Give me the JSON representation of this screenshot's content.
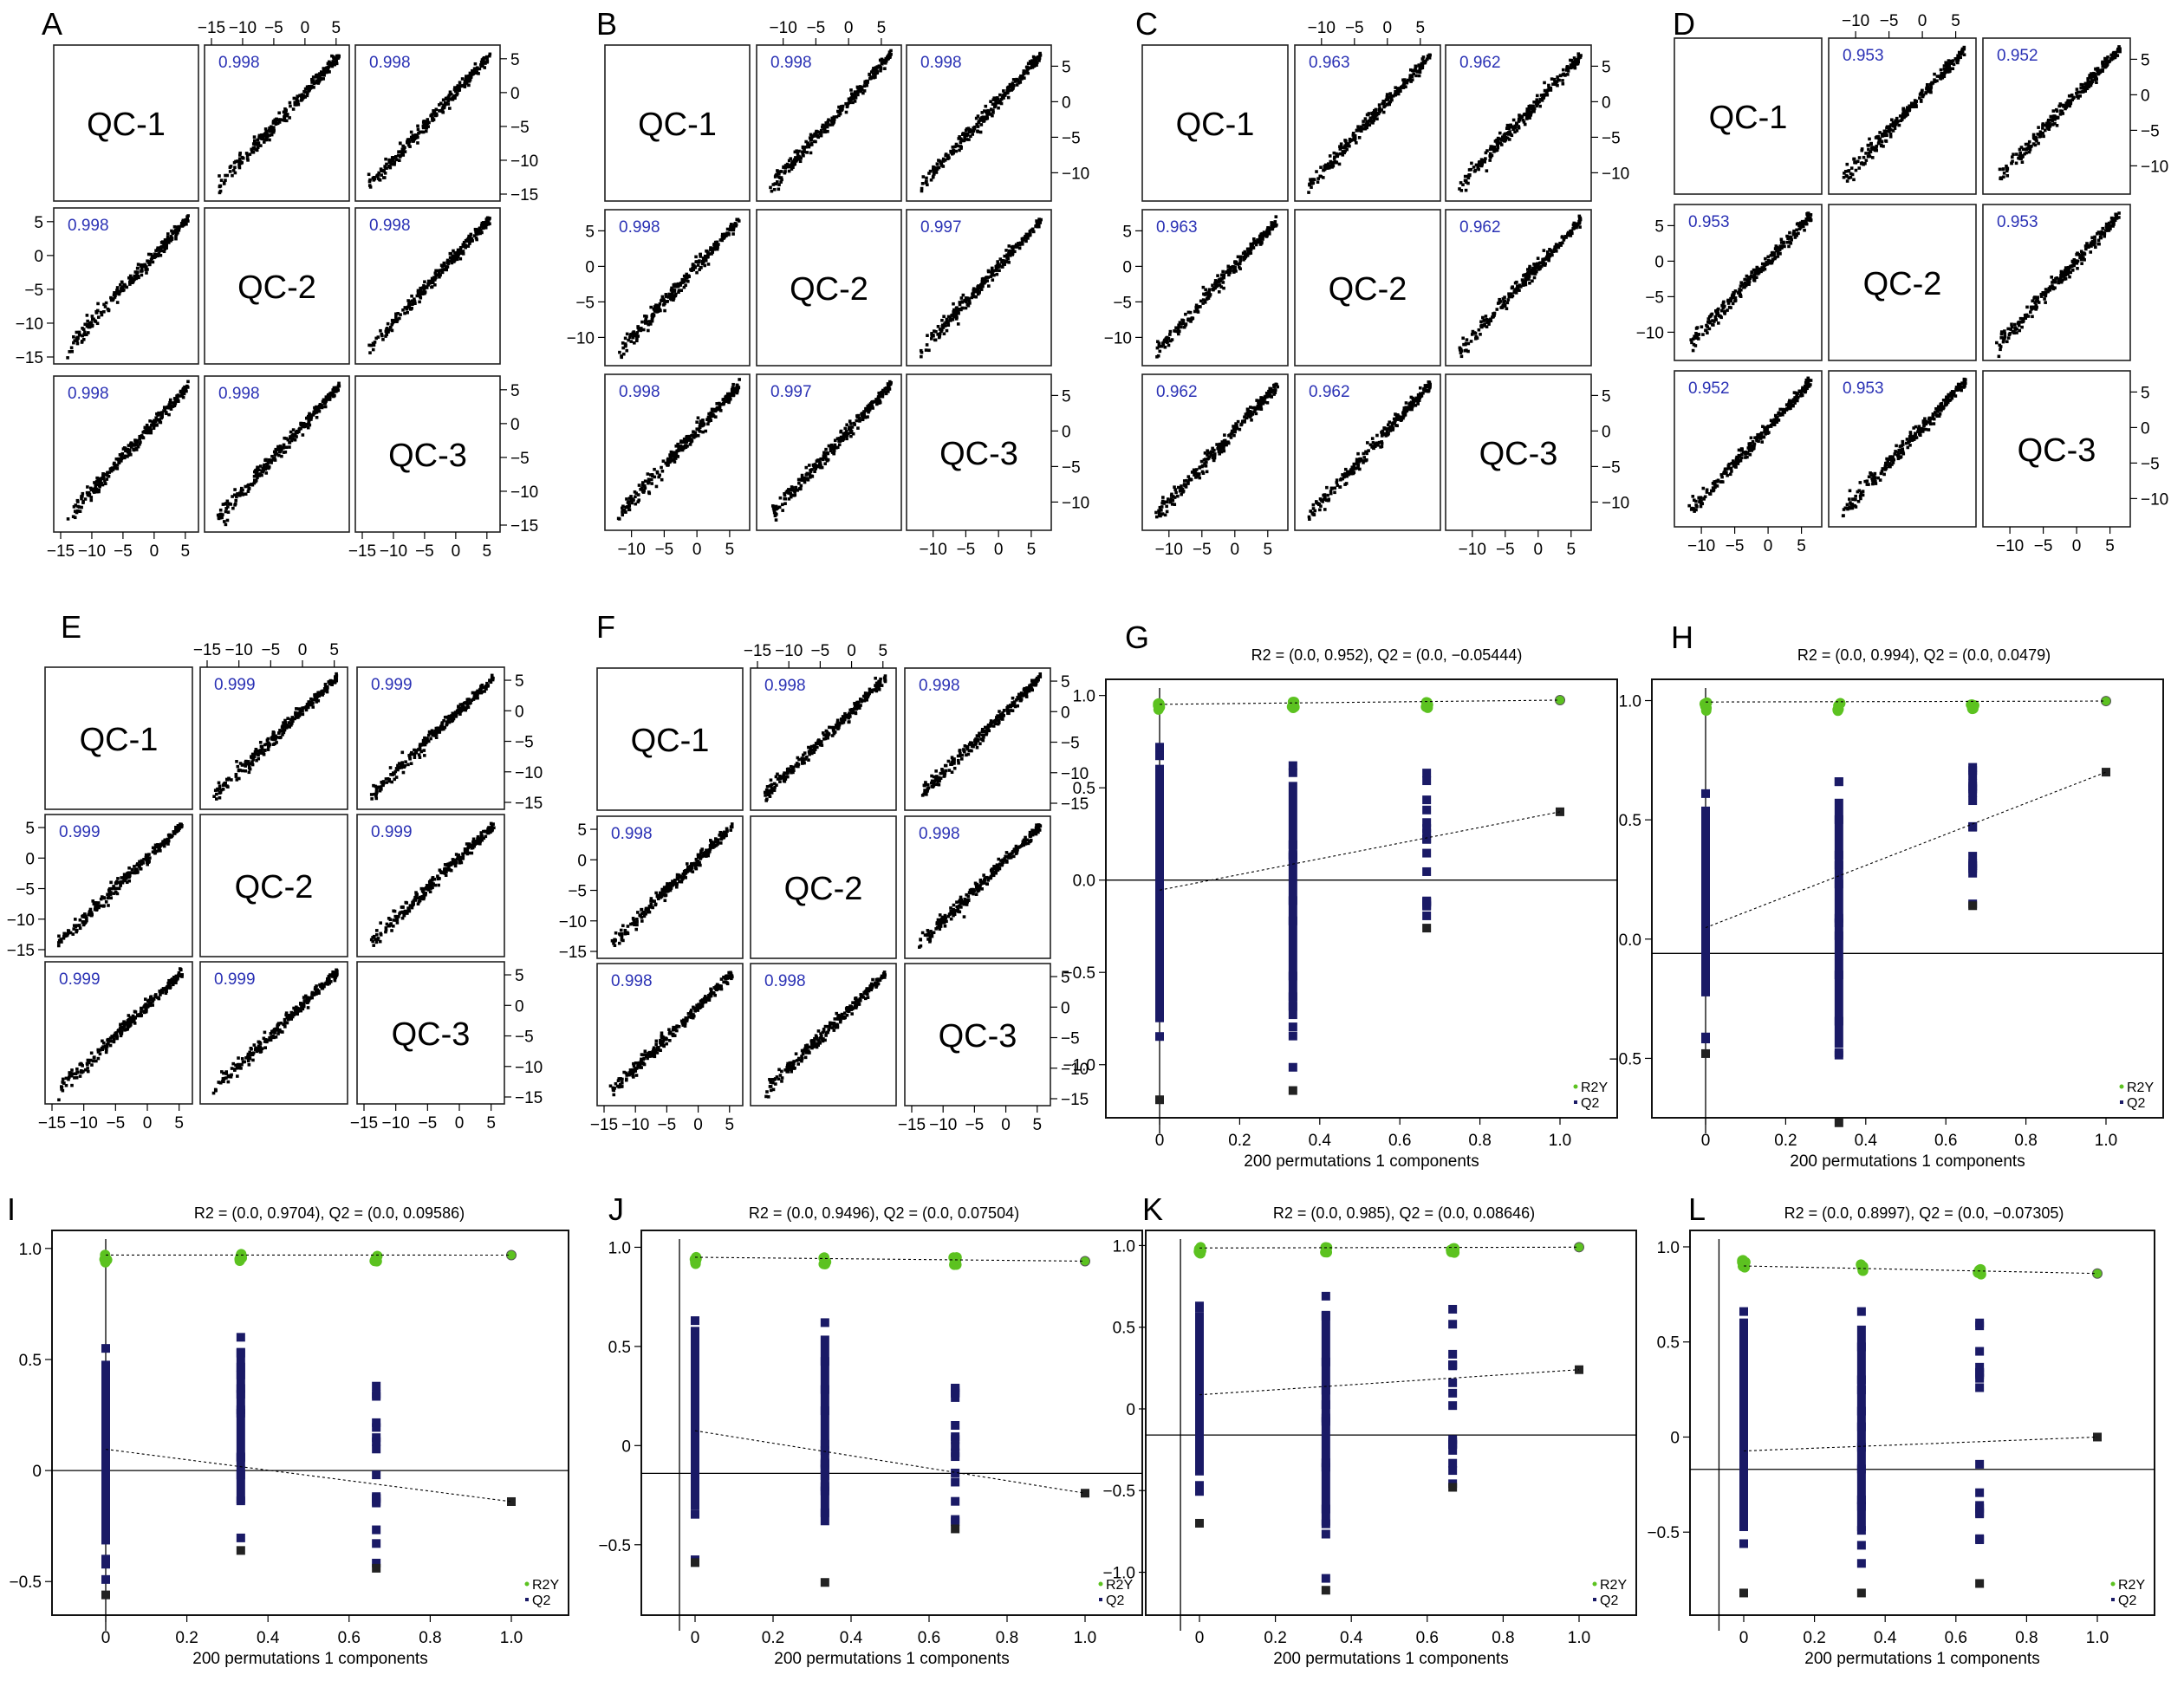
{
  "chart_data": [
    {
      "panel": "A",
      "type": "scatter-matrix",
      "diag_labels": [
        "QC-1",
        "QC-2",
        "QC-3"
      ],
      "correlations": [
        [
          "",
          "0.998",
          "0.998"
        ],
        [
          "0.998",
          "",
          "0.998"
        ],
        [
          "0.998",
          "0.998",
          ""
        ]
      ],
      "ticks": [
        "−15",
        "−10",
        "−5",
        "0",
        "5"
      ],
      "axis_range": [
        -15,
        6
      ]
    },
    {
      "panel": "B",
      "type": "scatter-matrix",
      "diag_labels": [
        "QC-1",
        "QC-2",
        "QC-3"
      ],
      "correlations": [
        [
          "",
          "0.998",
          "0.998"
        ],
        [
          "0.998",
          "",
          "0.997"
        ],
        [
          "0.998",
          "0.997",
          ""
        ]
      ],
      "ticks": [
        "−10",
        "−5",
        "0",
        "5"
      ],
      "axis_range": [
        -13,
        7
      ]
    },
    {
      "panel": "C",
      "type": "scatter-matrix",
      "diag_labels": [
        "QC-1",
        "QC-2",
        "QC-3"
      ],
      "correlations": [
        [
          "",
          "0.963",
          "0.962"
        ],
        [
          "0.963",
          "",
          "0.962"
        ],
        [
          "0.962",
          "0.962",
          ""
        ]
      ],
      "ticks": [
        "−10",
        "−5",
        "0",
        "5"
      ],
      "axis_range": [
        -13,
        7
      ]
    },
    {
      "panel": "D",
      "type": "scatter-matrix",
      "diag_labels": [
        "QC-1",
        "QC-2",
        "QC-3"
      ],
      "correlations": [
        [
          "",
          "0.953",
          "0.952"
        ],
        [
          "0.953",
          "",
          "0.953"
        ],
        [
          "0.952",
          "0.953",
          ""
        ]
      ],
      "ticks": [
        "−10",
        "−5",
        "0",
        "5"
      ],
      "axis_range": [
        -13,
        7
      ]
    },
    {
      "panel": "E",
      "type": "scatter-matrix",
      "diag_labels": [
        "QC-1",
        "QC-2",
        "QC-3"
      ],
      "correlations": [
        [
          "",
          "0.999",
          "0.999"
        ],
        [
          "0.999",
          "",
          "0.999"
        ],
        [
          "0.999",
          "0.999",
          ""
        ]
      ],
      "ticks": [
        "−15",
        "−10",
        "−5",
        "0",
        "5"
      ],
      "axis_range": [
        -15,
        6
      ]
    },
    {
      "panel": "F",
      "type": "scatter-matrix",
      "diag_labels": [
        "QC-1",
        "QC-2",
        "QC-3"
      ],
      "correlations": [
        [
          "",
          "0.998",
          "0.998"
        ],
        [
          "0.998",
          "",
          "0.998"
        ],
        [
          "0.998",
          "0.998",
          ""
        ]
      ],
      "ticks": [
        "−15",
        "−10",
        "−5",
        "0",
        "5"
      ],
      "axis_range": [
        -15,
        6
      ]
    },
    {
      "panel": "G",
      "type": "scatter",
      "title": "R2 = (0.0, 0.952), Q2 = (0.0, −0.05444)",
      "xlabel": "200 permutations 1 components",
      "xlim": [
        0,
        1
      ],
      "ylim": [
        -1.25,
        1.05
      ],
      "xticks": [
        0,
        0.2,
        0.4,
        0.6,
        0.8,
        1.0
      ],
      "xtick_labels": [
        "0",
        "0.2",
        "0.4",
        "0.6",
        "0.8",
        "1.0"
      ],
      "yticks": [
        -1.0,
        -0.5,
        0.0,
        0.5,
        1.0
      ],
      "ytick_labels": [
        "−1.0",
        "−0.5",
        "0.0",
        "0.5",
        "1.0"
      ],
      "hline": 0,
      "vline": 0,
      "legend": [
        "R2Y",
        "Q2"
      ],
      "r2y": {
        "x": [
          0,
          0.333,
          0.667,
          1.0
        ],
        "y": [
          0.96,
          0.965,
          0.97,
          0.975
        ],
        "line": [
          0.952,
          0.975
        ]
      },
      "q2": {
        "x": [
          0,
          0.333,
          0.667,
          1.0
        ],
        "top": [
          0.72,
          0.62,
          0.58,
          0.37
        ],
        "bottom": [
          -1.19,
          -1.14,
          -0.26,
          0.37
        ],
        "line": [
          -0.05444,
          0.37
        ]
      }
    },
    {
      "panel": "H",
      "type": "scatter",
      "title": "R2 = (0.0, 0.994), Q2 = (0.0, 0.0479)",
      "xlabel": "200 permutations 1 components",
      "xlim": [
        0,
        1
      ],
      "ylim": [
        -0.72,
        1.06
      ],
      "xticks": [
        0,
        0.2,
        0.4,
        0.6,
        0.8,
        1.0
      ],
      "xtick_labels": [
        "0",
        "0.2",
        "0.4",
        "0.6",
        "0.8",
        "1.0"
      ],
      "yticks": [
        -0.5,
        0.0,
        0.5,
        1.0
      ],
      "ytick_labels": [
        "−0.5",
        "0.0",
        "0.5",
        "1.0"
      ],
      "hline": -0.06,
      "vline": 0,
      "legend": [
        "R2Y",
        "Q2"
      ],
      "r2y": {
        "x": [
          0,
          0.333,
          0.667,
          1.0
        ],
        "y": [
          0.995,
          0.996,
          0.997,
          0.998
        ],
        "line": [
          0.994,
          0.998
        ]
      },
      "q2": {
        "x": [
          0,
          0.333,
          0.667,
          1.0
        ],
        "top": [
          0.61,
          0.66,
          0.72,
          0.7
        ],
        "bottom": [
          -0.48,
          -0.77,
          0.14,
          0.7
        ],
        "line": [
          0.0479,
          0.7
        ]
      }
    },
    {
      "panel": "I",
      "type": "scatter",
      "title": "R2 = (0.0, 0.9704), Q2 = (0.0, 0.09586)",
      "xlabel": "200 permutations 1 components",
      "xlim": [
        0,
        1
      ],
      "ylim": [
        -0.62,
        1.05
      ],
      "xticks": [
        0,
        0.2,
        0.4,
        0.6,
        0.8,
        1.0
      ],
      "xtick_labels": [
        "0",
        "0.2",
        "0.4",
        "0.6",
        "0.8",
        "1.0"
      ],
      "yticks": [
        -0.5,
        0,
        0.5,
        1.0
      ],
      "ytick_labels": [
        "−0.5",
        "0",
        "0.5",
        "1.0"
      ],
      "hline": 0,
      "vline": 0,
      "legend": [
        "R2Y",
        "Q2"
      ],
      "r2y": {
        "x": [
          0,
          0.333,
          0.667,
          1.0
        ],
        "y": [
          0.975,
          0.975,
          0.975,
          0.97
        ],
        "line": [
          0.9704,
          0.97
        ]
      },
      "q2": {
        "x": [
          0,
          0.333,
          0.667,
          1.0
        ],
        "top": [
          0.55,
          0.6,
          0.38,
          -0.14
        ],
        "bottom": [
          -0.56,
          -0.36,
          -0.44,
          -0.14
        ],
        "line": [
          0.09586,
          -0.14
        ]
      }
    },
    {
      "panel": "J",
      "type": "scatter",
      "title": "R2 = (0.0, 0.9496), Q2 = (0.0, 0.07504)",
      "xlabel": "200 permutations 1 components",
      "xlim": [
        0,
        1
      ],
      "ylim": [
        -0.82,
        1.05
      ],
      "xticks": [
        0,
        0.2,
        0.4,
        0.6,
        0.8,
        1.0
      ],
      "xtick_labels": [
        "0",
        "0.2",
        "0.4",
        "0.6",
        "0.8",
        "1.0"
      ],
      "yticks": [
        -0.5,
        0,
        0.5,
        1.0
      ],
      "ytick_labels": [
        "−0.5",
        "0",
        "0.5",
        "1.0"
      ],
      "hline": -0.14,
      "vline": -0.04,
      "legend": [
        "R2Y",
        "Q2"
      ],
      "r2y": {
        "x": [
          0,
          0.333,
          0.667,
          1.0
        ],
        "y": [
          0.955,
          0.955,
          0.95,
          0.93
        ],
        "line": [
          0.9496,
          0.93
        ]
      },
      "q2": {
        "x": [
          0,
          0.333,
          0.667,
          1.0
        ],
        "top": [
          0.63,
          0.62,
          0.29,
          -0.24
        ],
        "bottom": [
          -0.59,
          -0.69,
          -0.42,
          -0.24
        ],
        "line": [
          0.07504,
          -0.24
        ]
      }
    },
    {
      "panel": "K",
      "type": "scatter",
      "title": "R2 = (0.0, 0.985), Q2 = (0.0, 0.08646)",
      "xlabel": "200 permutations 1 components",
      "xlim": [
        0,
        1
      ],
      "ylim": [
        -1.22,
        1.05
      ],
      "xticks": [
        0,
        0.2,
        0.4,
        0.6,
        0.8,
        1.0
      ],
      "xtick_labels": [
        "0",
        "0.2",
        "0.4",
        "0.6",
        "0.8",
        "1.0"
      ],
      "yticks": [
        -1.0,
        -0.5,
        0,
        0.5,
        1.0
      ],
      "ytick_labels": [
        "−1.0",
        "−0.5",
        "0",
        "0.5",
        "1.0"
      ],
      "hline": -0.16,
      "vline": -0.05,
      "legend": [
        "R2Y",
        "Q2"
      ],
      "r2y": {
        "x": [
          0,
          0.333,
          0.667,
          1.0
        ],
        "y": [
          0.99,
          0.99,
          0.99,
          0.99
        ],
        "line": [
          0.985,
          0.99
        ]
      },
      "q2": {
        "x": [
          0,
          0.333,
          0.667,
          1.0
        ],
        "top": [
          0.63,
          0.69,
          0.61,
          0.24
        ],
        "bottom": [
          -0.7,
          -1.11,
          -0.48,
          0.24
        ],
        "line": [
          0.08646,
          0.24
        ]
      }
    },
    {
      "panel": "L",
      "type": "scatter",
      "title": "R2 = (0.0, 0.8997), Q2 = (0.0, −0.07305)",
      "xlabel": "200 permutations 1 components",
      "xlim": [
        0,
        1
      ],
      "ylim": [
        -0.9,
        1.05
      ],
      "xticks": [
        0,
        0.2,
        0.4,
        0.6,
        0.8,
        1.0
      ],
      "xtick_labels": [
        "0",
        "0.2",
        "0.4",
        "0.6",
        "0.8",
        "1.0"
      ],
      "yticks": [
        -0.5,
        0,
        0.5,
        1.0
      ],
      "ytick_labels": [
        "−0.5",
        "0",
        "0.5",
        "1.0"
      ],
      "hline": -0.17,
      "vline": -0.07,
      "legend": [
        "R2Y",
        "Q2"
      ],
      "r2y": {
        "x": [
          0,
          0.333,
          0.667,
          1.0
        ],
        "y": [
          0.93,
          0.91,
          0.89,
          0.86
        ],
        "line": [
          0.8997,
          0.86
        ]
      },
      "q2": {
        "x": [
          0,
          0.333,
          0.667,
          1.0
        ],
        "top": [
          0.66,
          0.66,
          0.6,
          0.0
        ],
        "bottom": [
          -0.82,
          -0.82,
          -0.77,
          0.0
        ],
        "line": [
          -0.07305,
          0.0
        ]
      }
    }
  ],
  "colors": {
    "correlation_text": "#2b32b5",
    "r2y_points": "#5cc220",
    "q2_points": "#1a1a66",
    "q2_endpoint": "#222222"
  }
}
